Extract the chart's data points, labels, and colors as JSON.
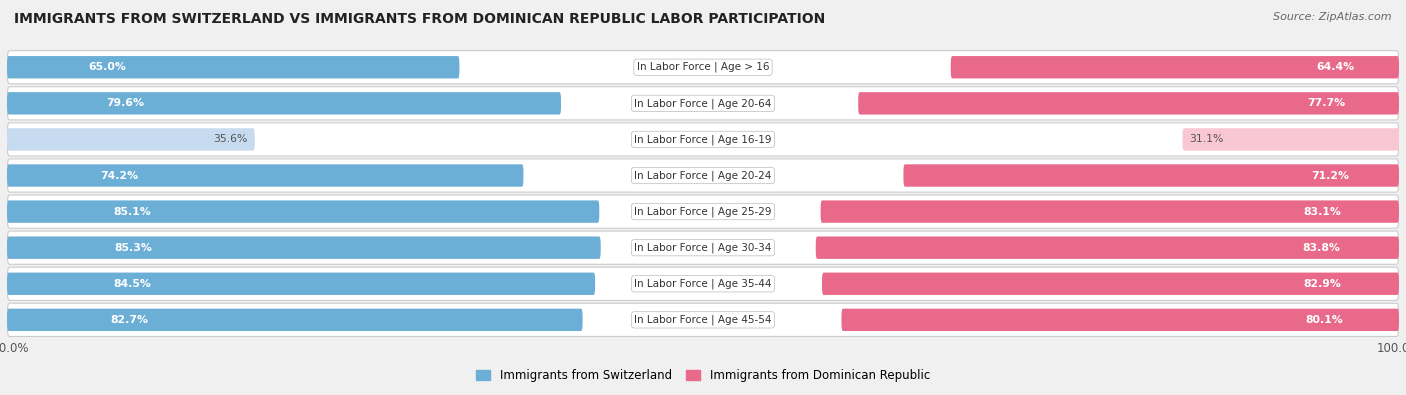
{
  "title": "IMMIGRANTS FROM SWITZERLAND VS IMMIGRANTS FROM DOMINICAN REPUBLIC LABOR PARTICIPATION",
  "source": "Source: ZipAtlas.com",
  "categories": [
    "In Labor Force | Age > 16",
    "In Labor Force | Age 20-64",
    "In Labor Force | Age 16-19",
    "In Labor Force | Age 20-24",
    "In Labor Force | Age 25-29",
    "In Labor Force | Age 30-34",
    "In Labor Force | Age 35-44",
    "In Labor Force | Age 45-54"
  ],
  "switzerland_values": [
    65.0,
    79.6,
    35.6,
    74.2,
    85.1,
    85.3,
    84.5,
    82.7
  ],
  "dominican_values": [
    64.4,
    77.7,
    31.1,
    71.2,
    83.1,
    83.8,
    82.9,
    80.1
  ],
  "switzerland_color_full": "#6baed6",
  "switzerland_color_light": "#c6dbef",
  "dominican_color_full": "#e8698a",
  "dominican_color_light": "#f9c6d4",
  "background_color": "#f0f0f0",
  "row_bg_color": "#e8e8e8",
  "legend_switzerland": "Immigrants from Switzerland",
  "legend_dominican": "Immigrants from Dominican Republic",
  "label_color_white": "#ffffff",
  "label_color_dark": "#555555",
  "threshold": 50.0
}
